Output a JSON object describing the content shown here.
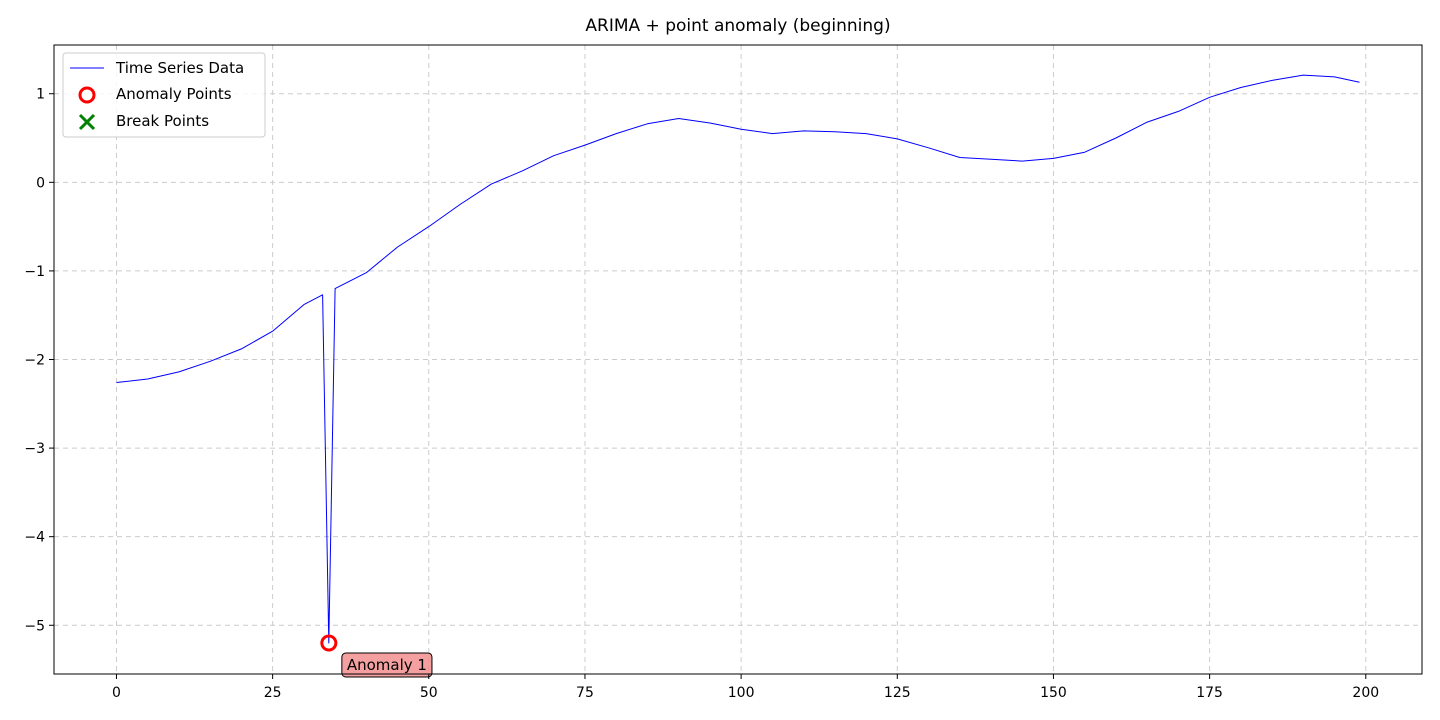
{
  "chart_data": {
    "type": "line",
    "title": "ARIMA + point anomaly (beginning)",
    "xlabel": "",
    "ylabel": "",
    "xlim": [
      -10,
      209
    ],
    "ylim": [
      -5.55,
      1.55
    ],
    "grid": true,
    "legend_placement": "top-left",
    "x_ticks": [
      0,
      25,
      50,
      75,
      100,
      125,
      150,
      175,
      200
    ],
    "y_ticks": [
      -5,
      -4,
      -3,
      -2,
      -1,
      0,
      1
    ],
    "x_tick_labels": [
      "0",
      "25",
      "50",
      "75",
      "100",
      "125",
      "150",
      "175",
      "200"
    ],
    "y_tick_labels": [
      "−5",
      "−4",
      "−3",
      "−2",
      "−1",
      "0",
      "1"
    ],
    "series": [
      {
        "name": "Time Series Data",
        "color": "#0000ff",
        "x": [
          0,
          5,
          10,
          15,
          20,
          25,
          30,
          33,
          34,
          35,
          40,
          45,
          50,
          55,
          60,
          65,
          70,
          75,
          80,
          85,
          90,
          95,
          100,
          105,
          110,
          115,
          120,
          125,
          130,
          135,
          140,
          145,
          150,
          155,
          160,
          165,
          170,
          175,
          180,
          185,
          190,
          195,
          199
        ],
        "y": [
          -2.26,
          -2.22,
          -2.14,
          -2.02,
          -1.88,
          -1.68,
          -1.38,
          -1.27,
          -5.2,
          -1.2,
          -1.02,
          -0.73,
          -0.5,
          -0.25,
          -0.02,
          0.13,
          0.3,
          0.42,
          0.55,
          0.66,
          0.72,
          0.67,
          0.6,
          0.55,
          0.58,
          0.57,
          0.55,
          0.49,
          0.39,
          0.28,
          0.26,
          0.24,
          0.27,
          0.34,
          0.5,
          0.68,
          0.8,
          0.96,
          1.07,
          1.15,
          1.21,
          1.19,
          1.13
        ]
      }
    ],
    "anomaly_points": {
      "name": "Anomaly Points",
      "color": "#ff0000",
      "x": [
        34
      ],
      "y": [
        -5.2
      ]
    },
    "break_points": {
      "name": "Break Points",
      "color": "#008000",
      "x": [],
      "y": []
    },
    "annotations": [
      {
        "text": "Anomaly 1",
        "x": 34,
        "y": -5.2
      }
    ]
  },
  "legend": {
    "items": [
      {
        "label": "Time Series Data",
        "marker": "line"
      },
      {
        "label": "Anomaly Points",
        "marker": "circle"
      },
      {
        "label": "Break Points",
        "marker": "x"
      }
    ]
  }
}
